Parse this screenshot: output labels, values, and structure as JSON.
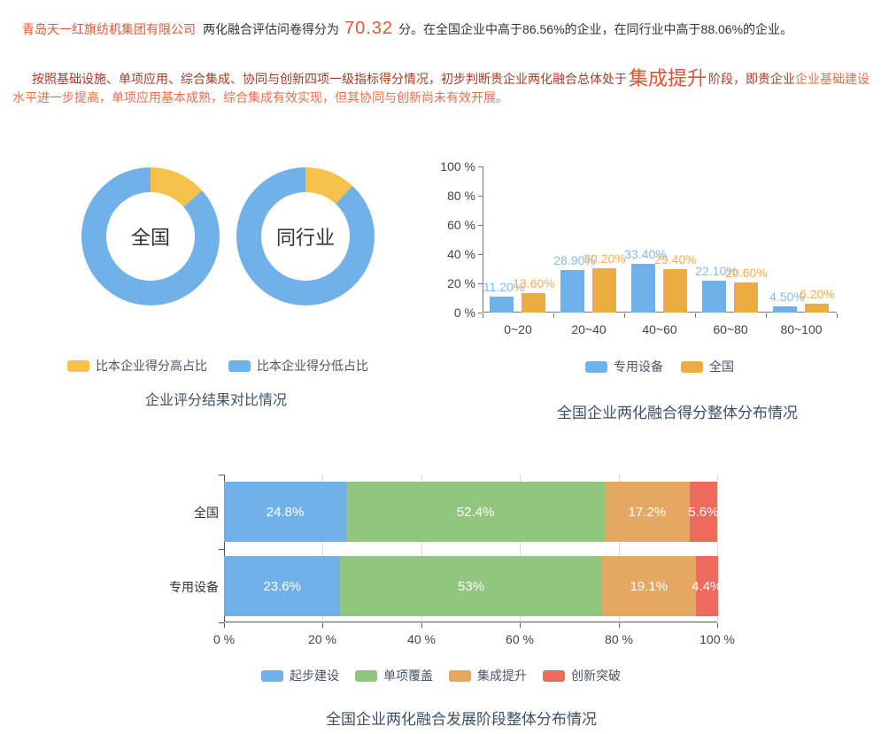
{
  "palette": {
    "blue": "#6FB1E8",
    "donut_yellow": "#F6C14B",
    "bar_orange": "#EBAC41",
    "green": "#92C67F",
    "stacked_orange": "#E4A862",
    "red": "#EE6A5C",
    "label_blue": "#85BBE9",
    "label_orange": "#EFAF52",
    "axis_line": "#777777",
    "axis_line_dark": "#555555",
    "gridline": "#DDDDDD",
    "title_color": "#3D5065",
    "accent_orange": "#E05A3A",
    "dark_red": "#A33C28",
    "light_red": "#E4714E"
  },
  "intro": {
    "company": "青岛天一红旗纺机集团有限公司",
    "score_label": "两化融合评估问卷得分为",
    "score": "70.32",
    "after_score": "分。在全国企业中高于86.56%的企业，在同行业中高于88.06%的企业。",
    "analysis": {
      "part1": "按照基础设施、单项应用、综合集成、协同与创新四项一级指标得分情况，初步判断贵企业两化融合总体处于",
      "stage": "集成提升",
      "part2": "阶段，即贵企业",
      "clause_line1": "企业基础建设",
      "clause_line2": "水平进一步提高，单项应用基本成熟，综合集成有效实现，但其协同与创新尚未有效开展。"
    }
  },
  "chart_data": [
    {
      "type": "pie",
      "donut": true,
      "title": "企业评分结果对比情况",
      "legend": [
        {
          "label": "比本企业得分高占比",
          "color": "#F6C14B"
        },
        {
          "label": "比本企业得分低占比",
          "color": "#6FB1E8"
        }
      ],
      "charts": [
        {
          "label": "全国",
          "slices": [
            {
              "name": "比本企业得分高占比",
              "value": 13.44
            },
            {
              "name": "比本企业得分低占比",
              "value": 86.56
            }
          ],
          "higher": 13.44
        },
        {
          "label": "同行业",
          "slices": [
            {
              "name": "比本企业得分高占比",
              "value": 11.94
            },
            {
              "name": "比本企业得分低占比",
              "value": 88.06
            }
          ],
          "higher": 11.94
        }
      ]
    },
    {
      "type": "bar",
      "title": "全国企业两化融合得分整体分布情况",
      "categories": [
        "0~20",
        "20~40",
        "40~60",
        "60~80",
        "80~100"
      ],
      "series": [
        {
          "name": "专用设备",
          "color": "#6FB1E8",
          "values": [
            11.2,
            28.9,
            33.4,
            22.1,
            4.5
          ],
          "labels": [
            "11.20%",
            "28.90%",
            "33.40%",
            "22.10%",
            "4.50%"
          ]
        },
        {
          "name": "全国",
          "color": "#EBAC41",
          "values": [
            13.6,
            30.2,
            29.4,
            20.6,
            6.2
          ],
          "labels": [
            "13.60%",
            "30.20%",
            "29.40%",
            "20.60%",
            "6.20%"
          ]
        }
      ],
      "yticks": [
        "0 %",
        "20 %",
        "40 %",
        "60 %",
        "80 %",
        "100 %"
      ],
      "ylim": [
        0,
        100
      ],
      "grid": false,
      "legend_position": "bottom"
    },
    {
      "type": "bar",
      "orientation": "horizontal-stacked",
      "title": "全国企业两化融合发展阶段整体分布情况",
      "rows": [
        {
          "label": "全国",
          "values": [
            24.8,
            52.4,
            17.2,
            5.6
          ],
          "labels": [
            "24.8%",
            "52.4%",
            "17.2%",
            "5.6%"
          ]
        },
        {
          "label": "专用设备",
          "values": [
            23.6,
            53,
            19.1,
            4.4
          ],
          "labels": [
            "23.6%",
            "53%",
            "19.1%",
            "4.4%"
          ]
        }
      ],
      "series_legend": [
        {
          "label": "起步建设",
          "color": "#6FB1E8"
        },
        {
          "label": "单项覆盖",
          "color": "#92C67F"
        },
        {
          "label": "集成提升",
          "color": "#E4A862"
        },
        {
          "label": "创新突破",
          "color": "#EE6A5C"
        }
      ],
      "xticks": [
        "0 %",
        "20 %",
        "40 %",
        "60 %",
        "80 %",
        "100 %"
      ],
      "xlim": [
        0,
        100
      ],
      "grid": true,
      "legend_position": "bottom"
    }
  ]
}
